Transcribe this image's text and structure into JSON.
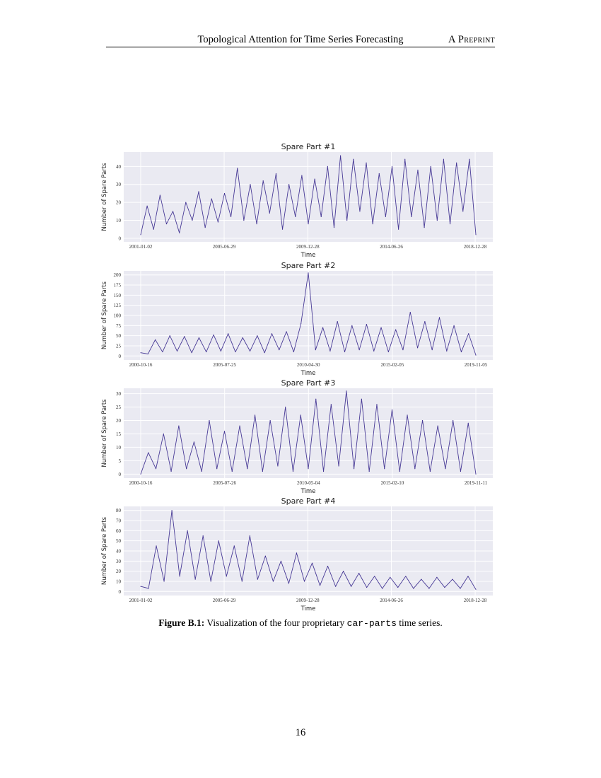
{
  "header": {
    "title": "Topological Attention for Time Series Forecasting",
    "right": "A Preprint"
  },
  "caption": {
    "label": "Figure B.1:",
    "text_before": "Visualization of the four proprietary",
    "code": "car-parts",
    "text_after": "time series."
  },
  "page_number": "16",
  "line_color": "#2b1b86",
  "chart_data": [
    {
      "type": "line",
      "title": "Spare Part #1",
      "xlabel": "Time",
      "ylabel": "Number of Spare Parts",
      "x_start": "2001-01-02",
      "x_end": "2019-01-10",
      "xticks": [
        "2001-01-02",
        "2005-06-29",
        "2009-12-28",
        "2014-06-26",
        "2018-12-28"
      ],
      "yticks": [
        0,
        10,
        20,
        30,
        40
      ],
      "ylim": [
        -2,
        48
      ],
      "grid": true,
      "values": [
        2,
        18,
        5,
        24,
        8,
        15,
        3,
        20,
        10,
        26,
        6,
        22,
        9,
        25,
        12,
        39,
        10,
        30,
        8,
        32,
        14,
        36,
        5,
        30,
        12,
        35,
        8,
        33,
        12,
        40,
        6,
        46,
        10,
        44,
        15,
        42,
        8,
        36,
        12,
        40,
        5,
        44,
        12,
        38,
        6,
        40,
        10,
        44,
        8,
        42,
        15,
        44,
        2
      ]
    },
    {
      "type": "line",
      "title": "Spare Part #2",
      "xlabel": "Time",
      "ylabel": "Number of Spare Parts",
      "x_start": "2000-10-16",
      "x_end": "2019-11-05",
      "xticks": [
        "2000-10-16",
        "2005-07-25",
        "2010-04-30",
        "2015-02-05",
        "2019-11-05"
      ],
      "yticks": [
        0,
        25,
        50,
        75,
        100,
        125,
        150,
        175,
        200
      ],
      "ylim": [
        -10,
        210
      ],
      "grid": true,
      "values": [
        8,
        5,
        40,
        10,
        50,
        12,
        48,
        8,
        45,
        10,
        52,
        12,
        55,
        10,
        45,
        12,
        50,
        8,
        55,
        15,
        60,
        10,
        80,
        205,
        15,
        70,
        12,
        85,
        10,
        75,
        15,
        78,
        12,
        70,
        10,
        65,
        15,
        108,
        20,
        85,
        15,
        95,
        12,
        75,
        10,
        55,
        2
      ]
    },
    {
      "type": "line",
      "title": "Spare Part #3",
      "xlabel": "Time",
      "ylabel": "Number of Spare Parts",
      "x_start": "2000-10-16",
      "x_end": "2019-11-11",
      "xticks": [
        "2000-10-16",
        "2005-07-26",
        "2010-05-04",
        "2015-02-10",
        "2019-11-11"
      ],
      "yticks": [
        0,
        5,
        10,
        15,
        20,
        25,
        30
      ],
      "ylim": [
        -1.5,
        32
      ],
      "grid": true,
      "values": [
        0,
        8,
        2,
        15,
        1,
        18,
        2,
        12,
        1,
        20,
        2,
        16,
        1,
        18,
        2,
        22,
        1,
        20,
        3,
        25,
        1,
        22,
        2,
        28,
        1,
        26,
        3,
        31,
        2,
        28,
        1,
        26,
        2,
        24,
        1,
        22,
        2,
        20,
        1,
        18,
        2,
        20,
        1,
        19,
        0
      ]
    },
    {
      "type": "line",
      "title": "Spare Part #4",
      "xlabel": "Time",
      "ylabel": "Number of Spare Parts",
      "x_start": "2001-01-02",
      "x_end": "2019-01-10",
      "xticks": [
        "2001-01-02",
        "2005-06-29",
        "2009-12-28",
        "2014-06-26",
        "2018-12-28"
      ],
      "yticks": [
        0,
        10,
        20,
        30,
        40,
        50,
        60,
        70,
        80
      ],
      "ylim": [
        -4,
        84
      ],
      "grid": true,
      "values": [
        5,
        3,
        45,
        10,
        80,
        15,
        60,
        12,
        55,
        10,
        50,
        15,
        45,
        10,
        55,
        12,
        35,
        10,
        30,
        8,
        38,
        10,
        28,
        6,
        25,
        5,
        20,
        5,
        18,
        4,
        15,
        3,
        14,
        4,
        15,
        3,
        12,
        3,
        14,
        4,
        12,
        3,
        15,
        2
      ]
    }
  ]
}
